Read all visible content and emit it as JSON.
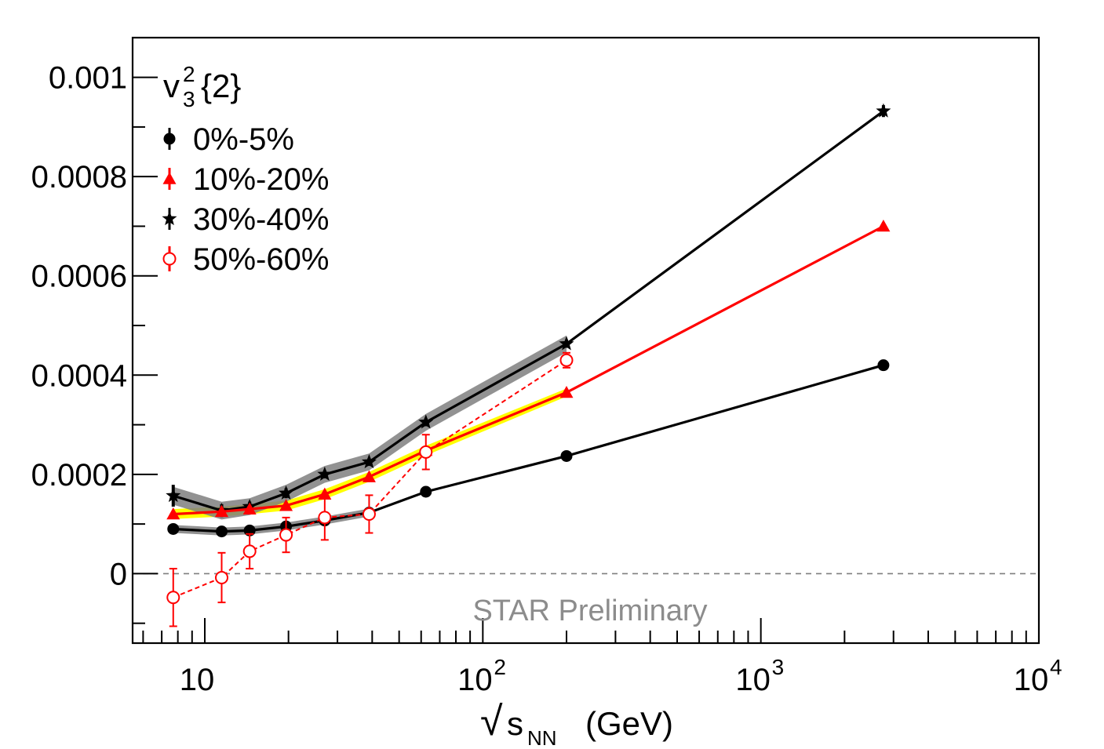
{
  "chart_data": {
    "type": "line",
    "legend_title": {
      "base": "v",
      "sup": "2",
      "sub": "3",
      "tail": "{2}"
    },
    "xlabel": {
      "root": "√",
      "var": "s",
      "sub": "NN",
      "unit": "(GeV)"
    },
    "xscale": "log",
    "xlim": [
      5.5,
      10000
    ],
    "ylim": [
      -0.00014,
      0.00108
    ],
    "x_tick_labels": [
      {
        "value": 10,
        "base": "10",
        "exp": ""
      },
      {
        "value": 100,
        "base": "10",
        "exp": "2"
      },
      {
        "value": 1000,
        "base": "10",
        "exp": "3"
      },
      {
        "value": 10000,
        "base": "10",
        "exp": "4"
      }
    ],
    "y_tick_labels": [
      {
        "value": 0,
        "label": "0"
      },
      {
        "value": 0.0002,
        "label": "0.0002"
      },
      {
        "value": 0.0004,
        "label": "0.0004"
      },
      {
        "value": 0.0006,
        "label": "0.0006"
      },
      {
        "value": 0.0008,
        "label": "0.0008"
      },
      {
        "value": 0.001,
        "label": "0.001"
      }
    ],
    "reference_line": {
      "y": 0,
      "style": "dashed",
      "color": "#7f7f7f"
    },
    "watermark": "STAR Preliminary",
    "legend_position": "top-left",
    "series": [
      {
        "name": "0%-5%",
        "color": "#000000",
        "marker": "circle",
        "band_color": "#7f7f7f",
        "band_upto_index": 5,
        "x": [
          7.7,
          11.5,
          14.5,
          19.6,
          27,
          39,
          62.4,
          200,
          2760
        ],
        "y": [
          9e-05,
          8.5e-05,
          8.7e-05,
          9.5e-05,
          0.000107,
          0.000123,
          0.000165,
          0.000237,
          0.00042
        ],
        "err": [
          4e-06,
          4e-06,
          3e-06,
          3e-06,
          3e-06,
          3e-06,
          3e-06,
          3e-06,
          2e-06
        ],
        "band": [
          8e-06,
          8e-06,
          8e-06,
          8e-06,
          8e-06,
          8e-06,
          6e-06,
          6e-06,
          0
        ]
      },
      {
        "name": "10%-20%",
        "color": "#ff0000",
        "marker": "triangle",
        "band_color": "#ffff00",
        "band_upto_index": 7,
        "x": [
          7.7,
          11.5,
          14.5,
          19.6,
          27,
          39,
          62.4,
          200,
          2760
        ],
        "y": [
          0.00012,
          0.000125,
          0.00013,
          0.000137,
          0.00016,
          0.000195,
          0.000248,
          0.000365,
          0.0007
        ],
        "err": [
          5e-06,
          5e-06,
          4e-06,
          4e-06,
          4e-06,
          4e-06,
          4e-06,
          3e-06,
          3e-06
        ],
        "band": [
          1e-05,
          1e-05,
          1e-05,
          1e-05,
          1e-05,
          1e-05,
          1e-05,
          8e-06,
          0
        ]
      },
      {
        "name": "30%-40%",
        "color": "#000000",
        "marker": "star",
        "band_color": "#7f7f7f",
        "band_upto_index": 7,
        "x": [
          7.7,
          11.5,
          14.5,
          19.6,
          27,
          39,
          62.4,
          200,
          2760
        ],
        "y": [
          0.000157,
          0.000127,
          0.000135,
          0.000162,
          0.0002,
          0.000225,
          0.000305,
          0.000463,
          0.000932
        ],
        "err": [
          2.2e-05,
          1.3e-05,
          1e-05,
          1e-05,
          8e-06,
          8e-06,
          8e-06,
          8e-06,
          1.2e-05
        ],
        "band": [
          1.8e-05,
          1.8e-05,
          1.7e-05,
          1.7e-05,
          1.7e-05,
          1.7e-05,
          1.7e-05,
          1.7e-05,
          0
        ]
      },
      {
        "name": "50%-60%",
        "color": "#ff0000",
        "marker": "open-circle",
        "dashed": true,
        "x": [
          7.7,
          11.5,
          14.5,
          19.6,
          27,
          39,
          62.4,
          200
        ],
        "y": [
          -4.8e-05,
          -8e-06,
          4.5e-05,
          7.8e-05,
          0.000113,
          0.00012,
          0.000245,
          0.00043
        ],
        "err": [
          5.8e-05,
          5e-05,
          3.5e-05,
          3.5e-05,
          4.5e-05,
          3.8e-05,
          3.5e-05,
          1.5e-05
        ]
      }
    ]
  }
}
